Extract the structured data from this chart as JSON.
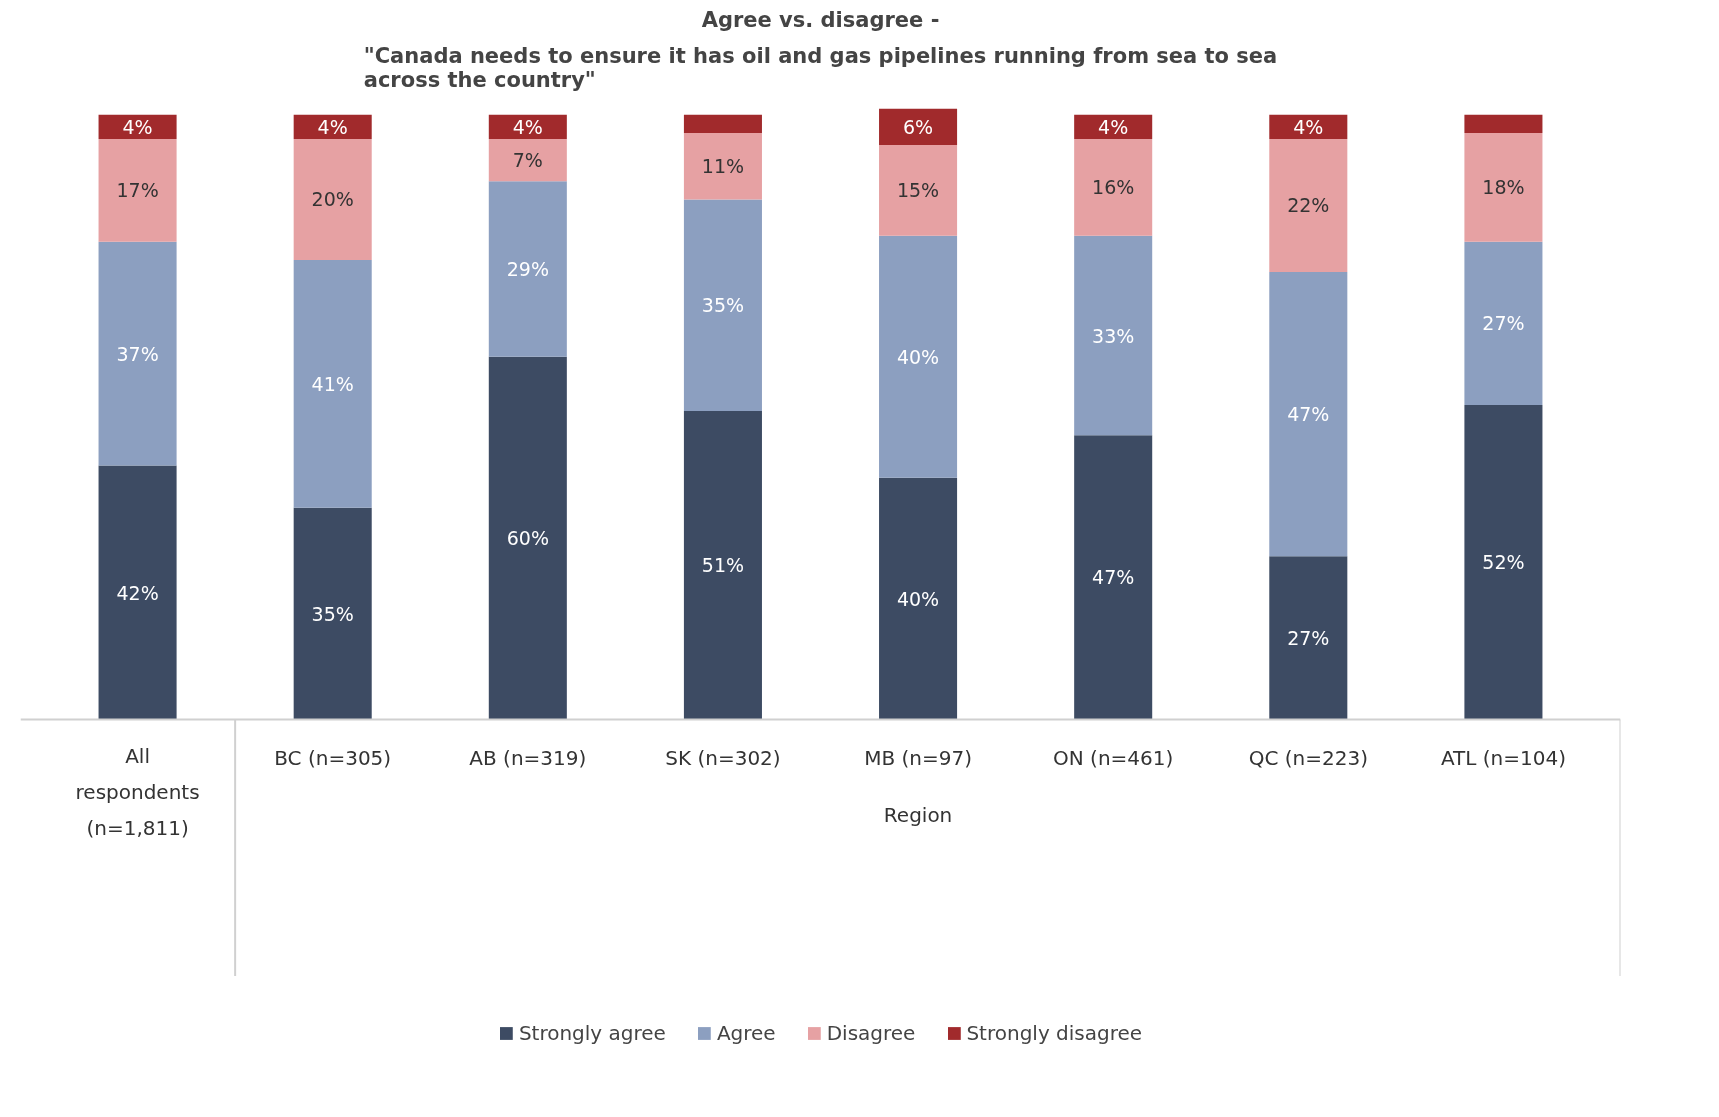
{
  "chart_data": {
    "type": "bar",
    "stacked": true,
    "title": "Agree vs. disagree -",
    "subtitle": "\"Canada needs to ensure it has oil and gas pipelines running from sea to sea across the country\"",
    "xlabel": "Region",
    "categories": [
      "All respondents (n=1,811)",
      "BC (n=305)",
      "AB (n=319)",
      "SK (n=302)",
      "MB (n=97)",
      "ON (n=461)",
      "QC (n=223)",
      "ATL (n=104)"
    ],
    "series": [
      {
        "name": "Strongly agree",
        "color": "#3d4b63",
        "values": [
          42,
          35,
          60,
          51,
          40,
          47,
          27,
          52
        ],
        "value_labels": [
          "42%",
          "35%",
          "60%",
          "51%",
          "40%",
          "47%",
          "27%",
          "52%"
        ]
      },
      {
        "name": "Agree",
        "color": "#8c9fc0",
        "values": [
          37,
          41,
          29,
          35,
          40,
          33,
          47,
          27
        ],
        "value_labels": [
          "37%",
          "41%",
          "29%",
          "35%",
          "40%",
          "33%",
          "47%",
          "27%"
        ]
      },
      {
        "name": "Disagree",
        "color": "#e6a1a3",
        "values": [
          17,
          20,
          7,
          11,
          15,
          16,
          22,
          18
        ],
        "value_labels": [
          "17%",
          "20%",
          "7%",
          "11%",
          "15%",
          "16%",
          "22%",
          "18%"
        ]
      },
      {
        "name": "Strongly disagree",
        "color": "#a12a2c",
        "values": [
          4,
          4,
          4,
          3,
          6,
          4,
          4,
          3
        ],
        "value_labels": [
          "4%",
          "4%",
          "4%",
          null,
          "6%",
          "4%",
          "4%",
          null
        ]
      }
    ],
    "legend": "bottom",
    "grid": false
  }
}
